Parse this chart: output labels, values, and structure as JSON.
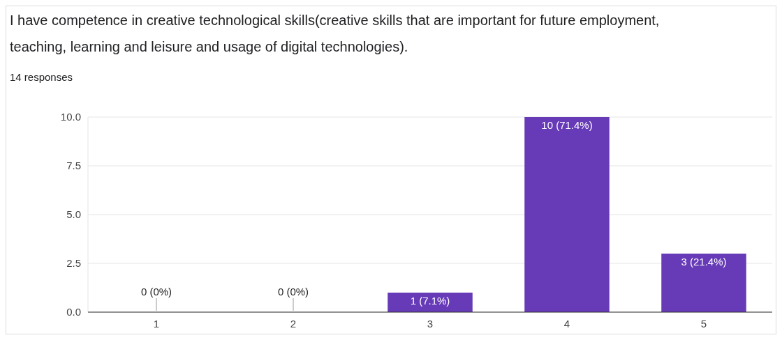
{
  "chart_data": {
    "type": "bar",
    "title": "I have competence in creative technological skills(creative skills that are important for future employment, teaching, learning and leisure and usage of digital technologies).",
    "subtitle": "14 responses",
    "categories": [
      "1",
      "2",
      "3",
      "4",
      "5"
    ],
    "values": [
      0,
      0,
      1,
      10,
      3
    ],
    "value_labels": [
      "0 (0%)",
      "0 (0%)",
      "1 (7.1%)",
      "10 (71.4%)",
      "3 (21.4%)"
    ],
    "color": "#673ab7",
    "ylim": [
      0,
      10
    ],
    "yticks": [
      {
        "value": 0,
        "label": "0.0"
      },
      {
        "value": 2.5,
        "label": "2.5"
      },
      {
        "value": 5,
        "label": "5.0"
      },
      {
        "value": 7.5,
        "label": "7.5"
      },
      {
        "value": 10,
        "label": "10.0"
      }
    ],
    "grid": "y"
  }
}
